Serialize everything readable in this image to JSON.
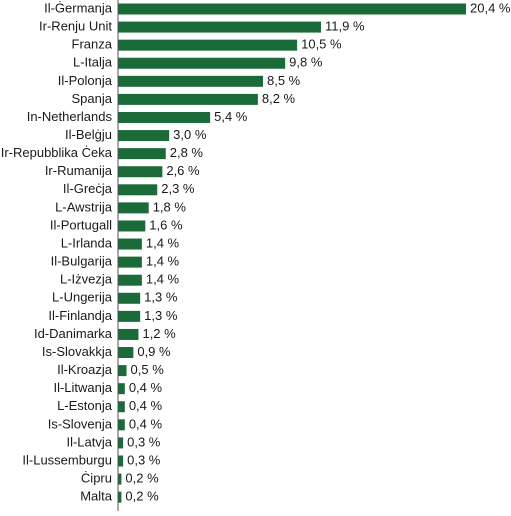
{
  "chart_data": {
    "type": "bar",
    "orientation": "horizontal",
    "title": "",
    "xlabel": "",
    "ylabel": "",
    "xlim": [
      0,
      20.4
    ],
    "grid": false,
    "legend": "none",
    "bar_color": "#1b6b3a",
    "axis_color": "#555555",
    "categories": [
      "Il-Ġermanja",
      "Ir-Renju Unit",
      "Franza",
      "L-Italja",
      "Il-Polonja",
      "Spanja",
      "In-Netherlands",
      "Il-Belġju",
      "Ir-Repubblika Ċeka",
      "Ir-Rumanija",
      "Il-Greċja",
      "L-Awstrija",
      "Il-Portugall",
      "L-Irlanda",
      "Il-Bulgarija",
      "L-Iżvezja",
      "L-Ungerija",
      "Il-Finlandja",
      "Id-Danimarka",
      "Is-Slovakkja",
      "Il-Kroazja",
      "Il-Litwanja",
      "L-Estonja",
      "Is-Slovenja",
      "Il-Latvja",
      "Il-Lussemburgu",
      "Ċipru",
      "Malta"
    ],
    "values": [
      20.4,
      11.9,
      10.5,
      9.8,
      8.5,
      8.2,
      5.4,
      3.0,
      2.8,
      2.6,
      2.3,
      1.8,
      1.6,
      1.4,
      1.4,
      1.4,
      1.3,
      1.3,
      1.2,
      0.9,
      0.5,
      0.4,
      0.4,
      0.4,
      0.3,
      0.3,
      0.2,
      0.2
    ],
    "value_labels": [
      "20,4 %",
      "11,9 %",
      "10,5 %",
      "9,8 %",
      "8,5 %",
      "8,2 %",
      "5,4 %",
      "3,0 %",
      "2,8 %",
      "2,6 %",
      "2,3 %",
      "1,8 %",
      "1,6 %",
      "1,4 %",
      "1,4 %",
      "1,4 %",
      "1,3 %",
      "1,3 %",
      "1,2 %",
      "0,9 %",
      "0,5 %",
      "0,4 %",
      "0,4 %",
      "0,4 %",
      "0,3 %",
      "0,3 %",
      "0,2 %",
      "0,2 %"
    ]
  }
}
